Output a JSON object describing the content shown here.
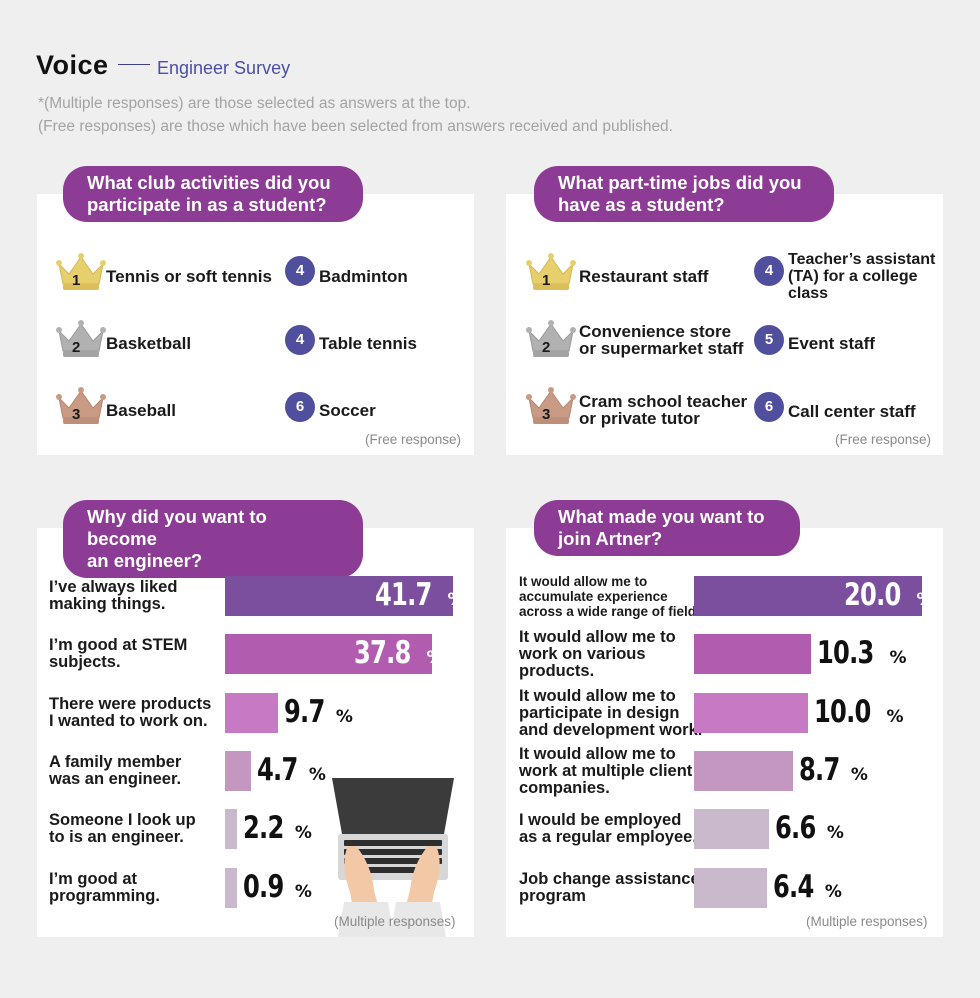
{
  "header": {
    "title": "Voice",
    "subtitle": "Engineer Survey",
    "note1": "*(Multiple responses) are those selected as answers at the top.",
    "note2": "(Free responses) are those which have been selected from answers received and published."
  },
  "colors": {
    "pill": "#8c3c94",
    "badge": "#4f4f9e",
    "gold": "#e8cf6e",
    "silver": "#b1b1b1",
    "bronze": "#c99a84",
    "bars": [
      "#7b4f9e",
      "#b25caf",
      "#c77ac3",
      "#c497c1",
      "#cab9cc",
      "#cab9cc"
    ]
  },
  "club": {
    "question": "What club activities did you\nparticipate in as a student?",
    "footnote": "(Free response)",
    "items": [
      {
        "rank": "1",
        "label": "Tennis or soft tennis",
        "icon": "gold-crown-icon"
      },
      {
        "rank": "2",
        "label": "Basketball",
        "icon": "silver-crown-icon"
      },
      {
        "rank": "3",
        "label": "Baseball",
        "icon": "bronze-crown-icon"
      },
      {
        "rank": "4",
        "label": "Badminton"
      },
      {
        "rank": "4",
        "label": "Table tennis"
      },
      {
        "rank": "6",
        "label": "Soccer"
      }
    ]
  },
  "jobs": {
    "question": "What part-time jobs did you\nhave as a student?",
    "footnote": "(Free response)",
    "items": [
      {
        "rank": "1",
        "label": "Restaurant staff",
        "icon": "gold-crown-icon"
      },
      {
        "rank": "2",
        "label": "Convenience store\nor supermarket staff",
        "icon": "silver-crown-icon"
      },
      {
        "rank": "3",
        "label": "Cram school teacher\nor private tutor",
        "icon": "bronze-crown-icon"
      },
      {
        "rank": "4",
        "label": "Teacher’s assistant\n(TA) for a college\nclass"
      },
      {
        "rank": "5",
        "label": "Event staff"
      },
      {
        "rank": "6",
        "label": "Call center staff"
      }
    ]
  },
  "chart_data": [
    {
      "type": "bar",
      "title": "Why did you want to become\nan engineer?",
      "orientation": "horizontal",
      "unit": "%",
      "footnote": "(Multiple responses)",
      "categories": [
        "I’ve always liked\nmaking things.",
        "I’m good at STEM\nsubjects.",
        "There were products\nI wanted to work on.",
        "A family member\nwas an engineer.",
        "Someone I look up\nto is an engineer.",
        "I’m good at\nprogramming."
      ],
      "values": [
        41.7,
        37.8,
        9.7,
        4.7,
        2.2,
        0.9
      ],
      "labels": [
        "41.7",
        "37.8",
        "9.7",
        "4.7",
        "2.2",
        "0.9"
      ]
    },
    {
      "type": "bar",
      "title": "What made you want to\njoin Artner?",
      "orientation": "horizontal",
      "unit": "%",
      "footnote": "(Multiple responses)",
      "categories": [
        "It would allow me to\naccumulate experience\nacross a wide range of fields.",
        "It would allow me to\nwork on various\nproducts.",
        "It would allow me to\nparticipate in design\nand development work.",
        "It would allow me to\nwork at multiple client\ncompanies.",
        "I would be employed\nas a regular employee.",
        "Job change assistance\nprogram"
      ],
      "values": [
        20.0,
        10.3,
        10.0,
        8.7,
        6.6,
        6.4
      ],
      "labels": [
        "20.0",
        "10.3",
        "10.0",
        "8.7",
        "6.6",
        "6.4"
      ]
    }
  ]
}
